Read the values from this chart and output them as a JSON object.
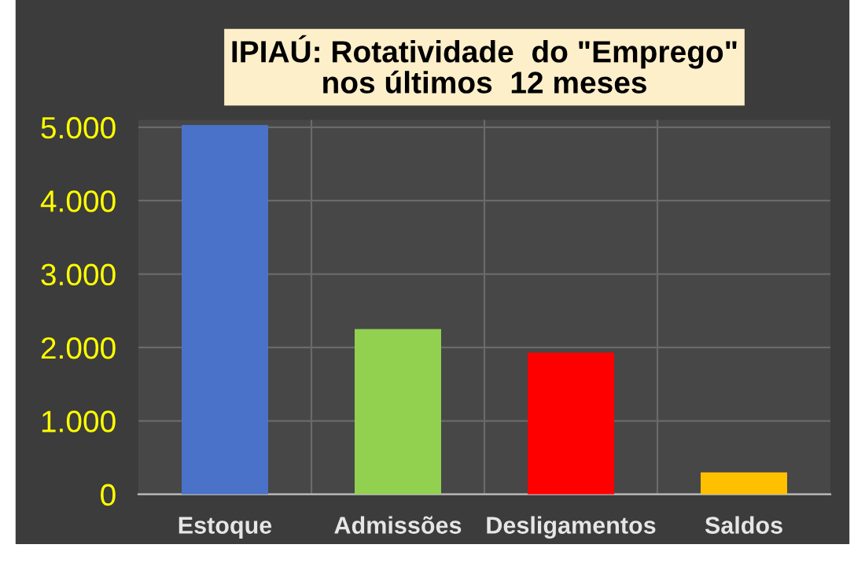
{
  "chart_data": {
    "type": "bar",
    "title": "IPIAÚ: Rotatividade  do \"Emprego\"\nnos últimos  12 meses",
    "categories": [
      "Estoque",
      "Admissões",
      "Desligamentos",
      "Saldos"
    ],
    "values": [
      5030,
      2250,
      1930,
      300
    ],
    "colors": [
      "#4a72c8",
      "#92d050",
      "#ff0000",
      "#ffc000"
    ],
    "ylim": [
      0,
      5100
    ],
    "yticks": [
      {
        "value": 0,
        "label": "0"
      },
      {
        "value": 1000,
        "label": "1.000"
      },
      {
        "value": 2000,
        "label": "2.000"
      },
      {
        "value": 3000,
        "label": "3.000"
      },
      {
        "value": 4000,
        "label": "4.000"
      },
      {
        "value": 5000,
        "label": "5.000"
      }
    ],
    "grid": true,
    "legend": false
  }
}
